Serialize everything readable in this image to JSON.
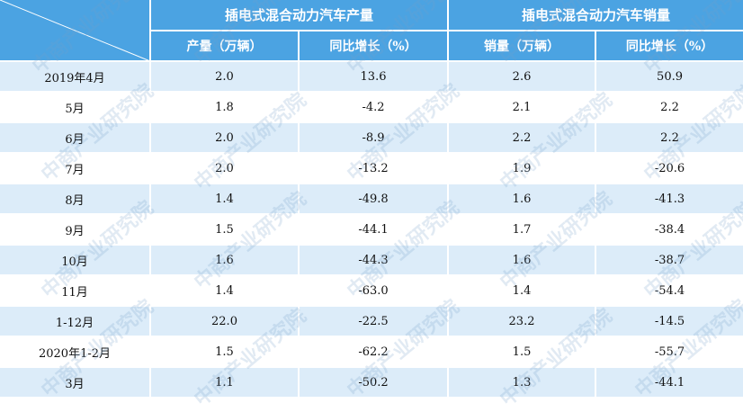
{
  "header": {
    "group_production": "插电式混合动力汽车产量",
    "group_sales": "插电式混合动力汽车销量",
    "col_production": "产量（万辆）",
    "col_production_yoy": "同比增长（%）",
    "col_sales": "销量（万辆）",
    "col_sales_yoy": "同比增长（%）"
  },
  "rows": [
    {
      "period": "2019年4月",
      "production": "2.0",
      "production_yoy": "13.6",
      "sales": "2.6",
      "sales_yoy": "50.9"
    },
    {
      "period": "5月",
      "production": "1.8",
      "production_yoy": "-4.2",
      "sales": "2.1",
      "sales_yoy": "2.2"
    },
    {
      "period": "6月",
      "production": "2.0",
      "production_yoy": "-8.9",
      "sales": "2.2",
      "sales_yoy": "2.2"
    },
    {
      "period": "7月",
      "production": "2.0",
      "production_yoy": "-13.2",
      "sales": "1.9",
      "sales_yoy": "-20.6"
    },
    {
      "period": "8月",
      "production": "1.4",
      "production_yoy": "-49.8",
      "sales": "1.6",
      "sales_yoy": "-41.3"
    },
    {
      "period": "9月",
      "production": "1.5",
      "production_yoy": "-44.1",
      "sales": "1.7",
      "sales_yoy": "-38.4"
    },
    {
      "period": "10月",
      "production": "1.6",
      "production_yoy": "-44.3",
      "sales": "1.6",
      "sales_yoy": "-38.7"
    },
    {
      "period": "11月",
      "production": "1.4",
      "production_yoy": "-63.0",
      "sales": "1.4",
      "sales_yoy": "-54.4"
    },
    {
      "period": "1-12月",
      "production": "22.0",
      "production_yoy": "-22.5",
      "sales": "23.2",
      "sales_yoy": "-14.5"
    },
    {
      "period": "2020年1-2月",
      "production": "1.5",
      "production_yoy": "-62.2",
      "sales": "1.5",
      "sales_yoy": "-55.7"
    },
    {
      "period": "3月",
      "production": "1.1",
      "production_yoy": "-50.2",
      "sales": "1.3",
      "sales_yoy": "-44.1"
    }
  ],
  "watermark": "中商产业研究院"
}
